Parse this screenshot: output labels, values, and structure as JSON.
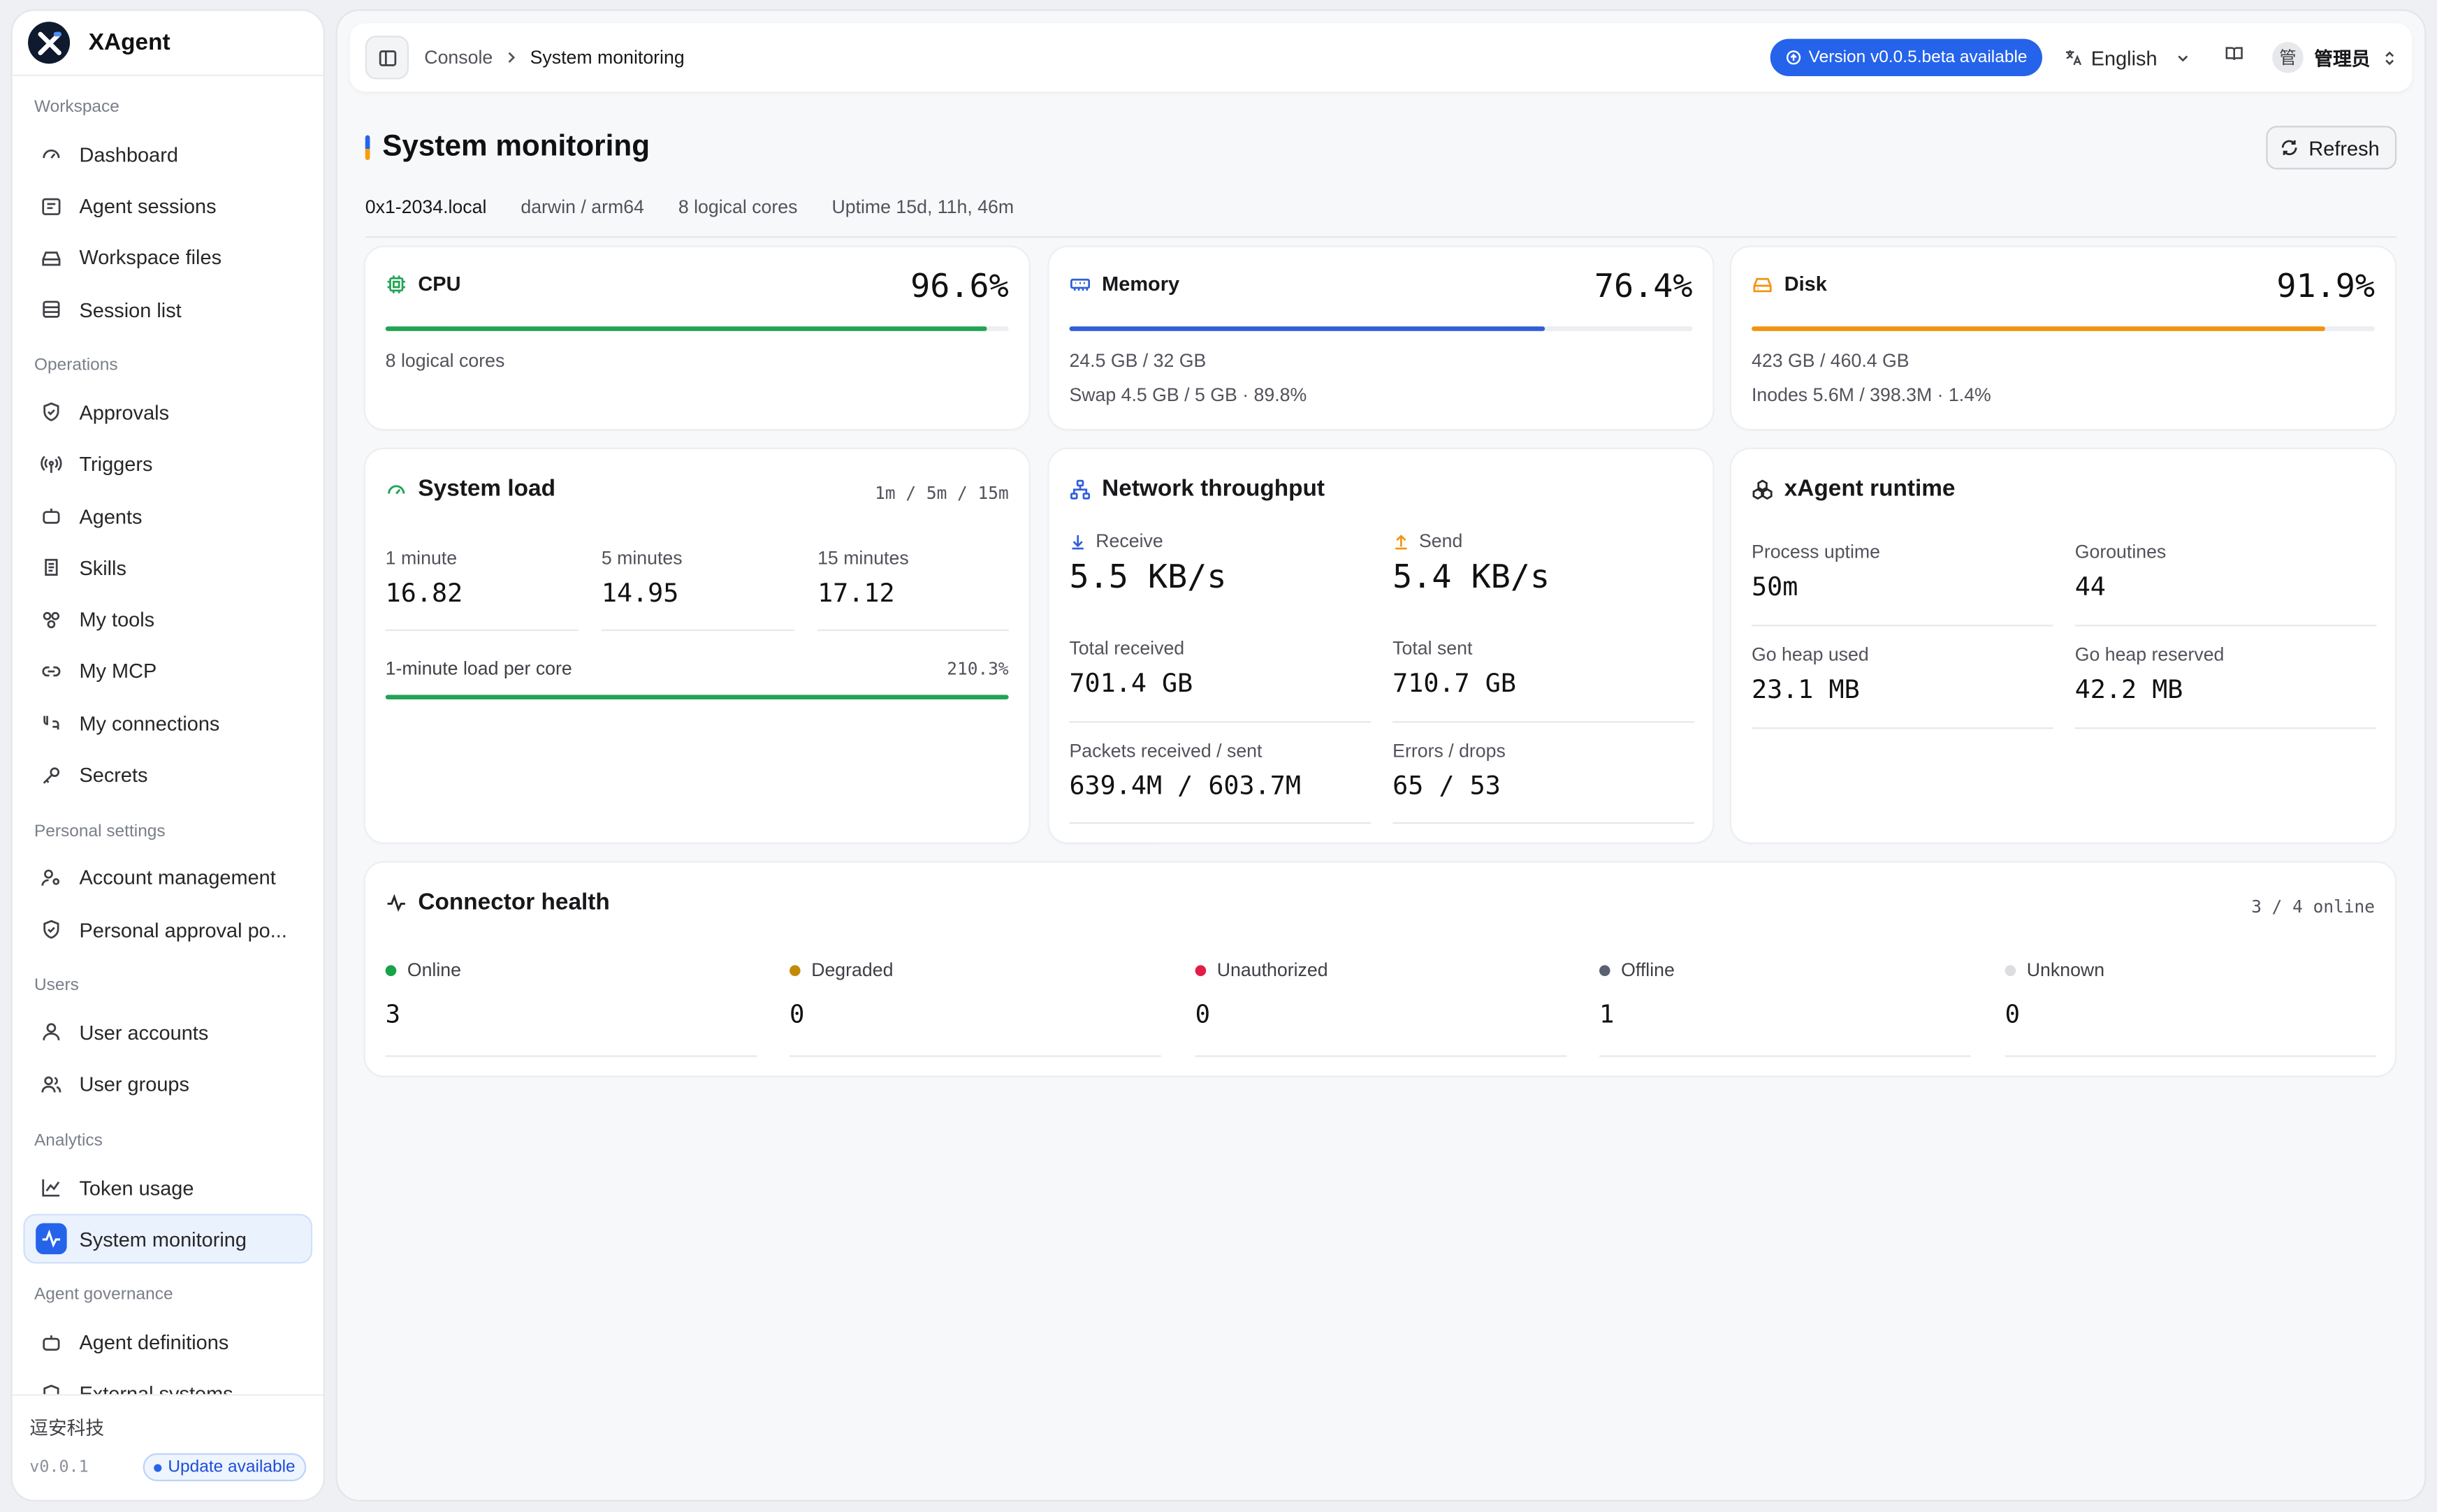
{
  "app": {
    "name": "XAgent"
  },
  "sidebar": {
    "groups": [
      {
        "label": "Workspace",
        "items": [
          {
            "label": "Dashboard",
            "icon": "gauge-icon"
          },
          {
            "label": "Agent sessions",
            "icon": "chat-list-icon"
          },
          {
            "label": "Workspace files",
            "icon": "drive-icon"
          },
          {
            "label": "Session list",
            "icon": "list-icon"
          }
        ]
      },
      {
        "label": "Operations",
        "items": [
          {
            "label": "Approvals",
            "icon": "shield-check-icon"
          },
          {
            "label": "Triggers",
            "icon": "radio-tower-icon"
          },
          {
            "label": "Agents",
            "icon": "bot-icon"
          },
          {
            "label": "Skills",
            "icon": "scroll-icon"
          },
          {
            "label": "My tools",
            "icon": "tools-icon"
          },
          {
            "label": "My MCP",
            "icon": "link-icon"
          },
          {
            "label": "My connections",
            "icon": "plug-icon"
          },
          {
            "label": "Secrets",
            "icon": "key-icon"
          }
        ]
      },
      {
        "label": "Personal settings",
        "items": [
          {
            "label": "Account management",
            "icon": "user-cog-icon"
          },
          {
            "label": "Personal approval po...",
            "icon": "shield-check-icon"
          }
        ]
      },
      {
        "label": "Users",
        "items": [
          {
            "label": "User accounts",
            "icon": "user-icon"
          },
          {
            "label": "User groups",
            "icon": "users-icon"
          }
        ]
      },
      {
        "label": "Analytics",
        "items": [
          {
            "label": "Token usage",
            "icon": "line-chart-icon"
          },
          {
            "label": "System monitoring",
            "icon": "activity-icon",
            "active": true
          }
        ]
      },
      {
        "label": "Agent governance",
        "items": [
          {
            "label": "Agent definitions",
            "icon": "bot-icon"
          },
          {
            "label": "External systems",
            "icon": "shield-icon"
          }
        ]
      }
    ],
    "footer": {
      "org": "逗安科技",
      "version": "v0.0.1",
      "update": "Update available"
    }
  },
  "topbar": {
    "breadcrumb": [
      "Console",
      "System monitoring"
    ],
    "version_notice": "Version v0.0.5.beta available",
    "language": "English",
    "user_initial": "管",
    "user_name": "管理员"
  },
  "page": {
    "title": "System monitoring",
    "refresh": "Refresh",
    "host": "0x1-2034.local",
    "platform": "darwin / arm64",
    "cores": "8 logical cores",
    "uptime": "Uptime 15d, 11h, 46m"
  },
  "cpu": {
    "title": "CPU",
    "value": "96.6%",
    "fraction": 0.966,
    "color": "#22a355",
    "sub": "8 logical cores"
  },
  "memory": {
    "title": "Memory",
    "value": "76.4%",
    "fraction": 0.764,
    "color": "#2f5fd8",
    "sub1": "24.5 GB / 32 GB",
    "sub2": "Swap 4.5 GB / 5 GB · 89.8%"
  },
  "disk": {
    "title": "Disk",
    "value": "91.9%",
    "fraction": 0.919,
    "color": "#f2930f",
    "sub1": "423 GB / 460.4 GB",
    "sub2": "Inodes 5.6M / 398.3M · 1.4%"
  },
  "load": {
    "title": "System load",
    "windows": "1m / 5m / 15m",
    "m1_label": "1 minute",
    "m1": "16.82",
    "m5_label": "5 minutes",
    "m5": "14.95",
    "m15_label": "15 minutes",
    "m15": "17.12",
    "per_core_label": "1-minute load per core",
    "per_core": "210.3%",
    "per_core_fraction": 1.0
  },
  "network": {
    "title": "Network throughput",
    "recv_label": "Receive",
    "recv": "5.5 KB/s",
    "send_label": "Send",
    "send": "5.4 KB/s",
    "total_recv_label": "Total received",
    "total_recv": "701.4 GB",
    "total_sent_label": "Total sent",
    "total_sent": "710.7 GB",
    "packets_label": "Packets received / sent",
    "packets": "639.4M / 603.7M",
    "errors_label": "Errors / drops",
    "errors": "65 / 53"
  },
  "runtime": {
    "title": "xAgent runtime",
    "uptime_label": "Process uptime",
    "uptime": "50m",
    "goroutines_label": "Goroutines",
    "goroutines": "44",
    "heap_used_label": "Go heap used",
    "heap_used": "23.1 MB",
    "heap_res_label": "Go heap reserved",
    "heap_res": "42.2 MB"
  },
  "connectors": {
    "title": "Connector health",
    "summary": "3 / 4 online",
    "statuses": [
      {
        "label": "Online",
        "value": "3",
        "color": "#16a34a"
      },
      {
        "label": "Degraded",
        "value": "0",
        "color": "#c48a06"
      },
      {
        "label": "Unauthorized",
        "value": "0",
        "color": "#e11d48"
      },
      {
        "label": "Offline",
        "value": "1",
        "color": "#5b6170"
      },
      {
        "label": "Unknown",
        "value": "0",
        "color": "#dcdde1"
      }
    ]
  }
}
